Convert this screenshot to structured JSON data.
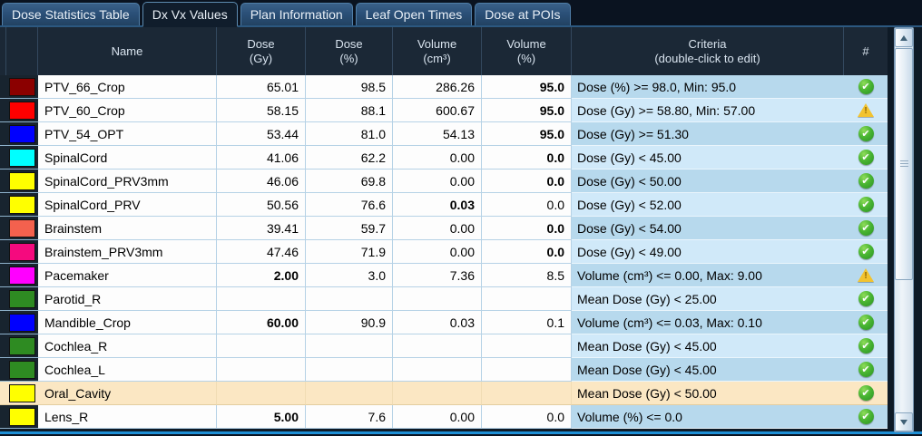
{
  "tabs": [
    {
      "label": "Dose Statistics Table",
      "active": false
    },
    {
      "label": "Dx Vx Values",
      "active": true
    },
    {
      "label": "Plan Information",
      "active": false
    },
    {
      "label": "Leaf Open Times",
      "active": false
    },
    {
      "label": "Dose at POIs",
      "active": false
    }
  ],
  "table": {
    "columns": [
      {
        "key": "name",
        "label": "Name",
        "sub": ""
      },
      {
        "key": "dose_gy",
        "label": "Dose",
        "sub": "(Gy)"
      },
      {
        "key": "dose_pct",
        "label": "Dose",
        "sub": "(%)"
      },
      {
        "key": "vol_cm3",
        "label": "Volume",
        "sub": "(cm³)"
      },
      {
        "key": "vol_pct",
        "label": "Volume",
        "sub": "(%)"
      },
      {
        "key": "criteria",
        "label": "Criteria",
        "sub": "(double-click to edit)"
      },
      {
        "key": "status",
        "label": "#",
        "sub": ""
      }
    ],
    "rows": [
      {
        "color": "#8b0000",
        "name": "PTV_66_Crop",
        "dose_gy": "65.01",
        "dose_pct": "98.5",
        "vol_cm3": "286.26",
        "vol_pct": "95.0",
        "bold": "vol_pct",
        "criteria": "Dose (%) >= 98.0, Min: 95.0",
        "status": "pass",
        "selected": false
      },
      {
        "color": "#ff0000",
        "name": "PTV_60_Crop",
        "dose_gy": "58.15",
        "dose_pct": "88.1",
        "vol_cm3": "600.67",
        "vol_pct": "95.0",
        "bold": "vol_pct",
        "criteria": "Dose (Gy) >= 58.80, Min: 57.00",
        "status": "warning",
        "selected": false
      },
      {
        "color": "#0000ff",
        "name": "PTV_54_OPT",
        "dose_gy": "53.44",
        "dose_pct": "81.0",
        "vol_cm3": "54.13",
        "vol_pct": "95.0",
        "bold": "vol_pct",
        "criteria": "Dose (Gy) >= 51.30",
        "status": "pass",
        "selected": false
      },
      {
        "color": "#00ffff",
        "name": "SpinalCord",
        "dose_gy": "41.06",
        "dose_pct": "62.2",
        "vol_cm3": "0.00",
        "vol_pct": "0.0",
        "bold": "vol_pct",
        "criteria": "Dose (Gy) < 45.00",
        "status": "pass",
        "selected": false
      },
      {
        "color": "#ffff00",
        "name": "SpinalCord_PRV3mm",
        "dose_gy": "46.06",
        "dose_pct": "69.8",
        "vol_cm3": "0.00",
        "vol_pct": "0.0",
        "bold": "vol_pct",
        "criteria": "Dose (Gy) < 50.00",
        "status": "pass",
        "selected": false
      },
      {
        "color": "#ffff00",
        "name": "SpinalCord_PRV",
        "dose_gy": "50.56",
        "dose_pct": "76.6",
        "vol_cm3": "0.03",
        "vol_pct": "0.0",
        "bold": "vol_cm3",
        "criteria": "Dose (Gy) < 52.00",
        "status": "pass",
        "selected": false
      },
      {
        "color": "#f3614e",
        "name": "Brainstem",
        "dose_gy": "39.41",
        "dose_pct": "59.7",
        "vol_cm3": "0.00",
        "vol_pct": "0.0",
        "bold": "vol_pct",
        "criteria": "Dose (Gy) < 54.00",
        "status": "pass",
        "selected": false
      },
      {
        "color": "#f50a7e",
        "name": "Brainstem_PRV3mm",
        "dose_gy": "47.46",
        "dose_pct": "71.9",
        "vol_cm3": "0.00",
        "vol_pct": "0.0",
        "bold": "vol_pct",
        "criteria": "Dose (Gy) < 49.00",
        "status": "pass",
        "selected": false
      },
      {
        "color": "#ff00ff",
        "name": "Pacemaker",
        "dose_gy": "2.00",
        "dose_pct": "3.0",
        "vol_cm3": "7.36",
        "vol_pct": "8.5",
        "bold": "dose_gy",
        "criteria": "Volume (cm³) <= 0.00, Max: 9.00",
        "status": "warning",
        "selected": false
      },
      {
        "color": "#2e8b22",
        "name": "Parotid_R",
        "dose_gy": "",
        "dose_pct": "",
        "vol_cm3": "",
        "vol_pct": "",
        "bold": "",
        "criteria": "Mean Dose (Gy) < 25.00",
        "status": "pass",
        "selected": false
      },
      {
        "color": "#0000ff",
        "name": "Mandible_Crop",
        "dose_gy": "60.00",
        "dose_pct": "90.9",
        "vol_cm3": "0.03",
        "vol_pct": "0.1",
        "bold": "dose_gy",
        "criteria": "Volume (cm³) <= 0.03, Max: 0.10",
        "status": "pass",
        "selected": false
      },
      {
        "color": "#2e8b22",
        "name": "Cochlea_R",
        "dose_gy": "",
        "dose_pct": "",
        "vol_cm3": "",
        "vol_pct": "",
        "bold": "",
        "criteria": "Mean Dose (Gy) < 45.00",
        "status": "pass",
        "selected": false
      },
      {
        "color": "#2e8b22",
        "name": "Cochlea_L",
        "dose_gy": "",
        "dose_pct": "",
        "vol_cm3": "",
        "vol_pct": "",
        "bold": "",
        "criteria": "Mean Dose (Gy) < 45.00",
        "status": "pass",
        "selected": false
      },
      {
        "color": "#ffff00",
        "name": "Oral_Cavity",
        "dose_gy": "",
        "dose_pct": "",
        "vol_cm3": "",
        "vol_pct": "",
        "bold": "",
        "criteria": "Mean Dose (Gy) < 50.00",
        "status": "pass",
        "selected": true
      },
      {
        "color": "#ffff00",
        "name": "Lens_R",
        "dose_gy": "5.00",
        "dose_pct": "7.6",
        "vol_cm3": "0.00",
        "vol_pct": "0.0",
        "bold": "dose_gy",
        "criteria": "Volume (%) <= 0.0",
        "status": "pass",
        "selected": false
      }
    ]
  },
  "colors": {
    "pass_icon": "#3aa32c",
    "warning_icon": "#f2c330",
    "row_alt_dark": "#b7d9ed",
    "row_alt_light": "#d0e9f9",
    "selected_row": "#fbe7c3",
    "header_bg": "#1b2836",
    "accent_border": "#1e8fd5"
  }
}
